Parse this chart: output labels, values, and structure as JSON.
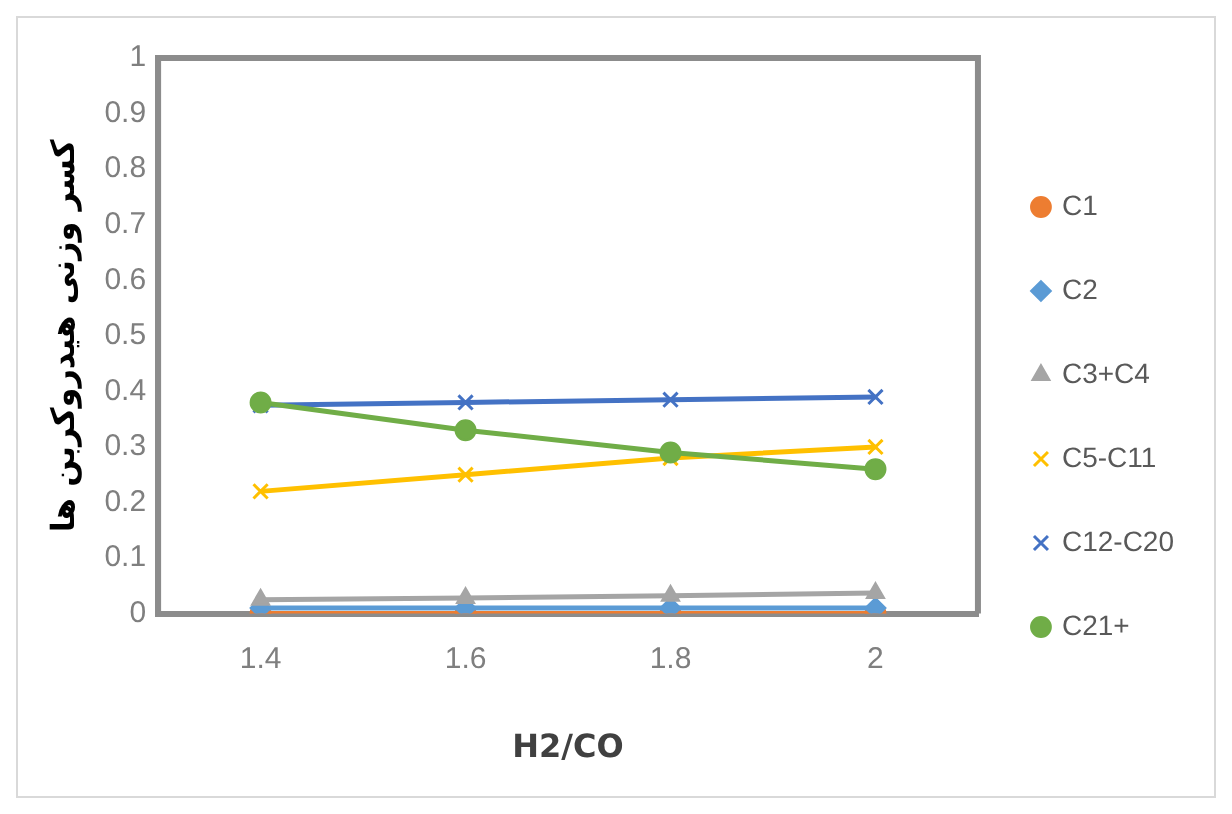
{
  "chart_data": {
    "type": "line",
    "xlabel": "H2/CO",
    "ylabel": "کسر وزنی هیدروکربن ها",
    "categories": [
      "1.4",
      "1.6",
      "1.8",
      "2"
    ],
    "series": [
      {
        "name": "C1",
        "color": "#ed7d31",
        "marker": "circle",
        "values": [
          0,
          0,
          0,
          0
        ]
      },
      {
        "name": "C2",
        "color": "#5b9bd5",
        "marker": "diamond",
        "values": [
          0.01,
          0.01,
          0.01,
          0.01
        ]
      },
      {
        "name": "C3+C4",
        "color": "#a5a5a5",
        "marker": "triangle",
        "values": [
          0.025,
          0.028,
          0.032,
          0.037
        ]
      },
      {
        "name": "C5-C11",
        "color": "#ffc000",
        "marker": "cross",
        "values": [
          0.22,
          0.25,
          0.28,
          0.3
        ]
      },
      {
        "name": "C12-C20",
        "color": "#4472c4",
        "marker": "cross",
        "values": [
          0.375,
          0.38,
          0.385,
          0.39
        ]
      },
      {
        "name": "C21+",
        "color": "#70ad47",
        "marker": "circle",
        "values": [
          0.38,
          0.33,
          0.29,
          0.26
        ]
      }
    ],
    "ylim": [
      0,
      1
    ],
    "yticks": [
      0,
      0.1,
      0.2,
      0.3,
      0.4,
      0.5,
      0.6,
      0.7,
      0.8,
      0.9,
      1
    ],
    "grid": false,
    "legend": "right"
  }
}
